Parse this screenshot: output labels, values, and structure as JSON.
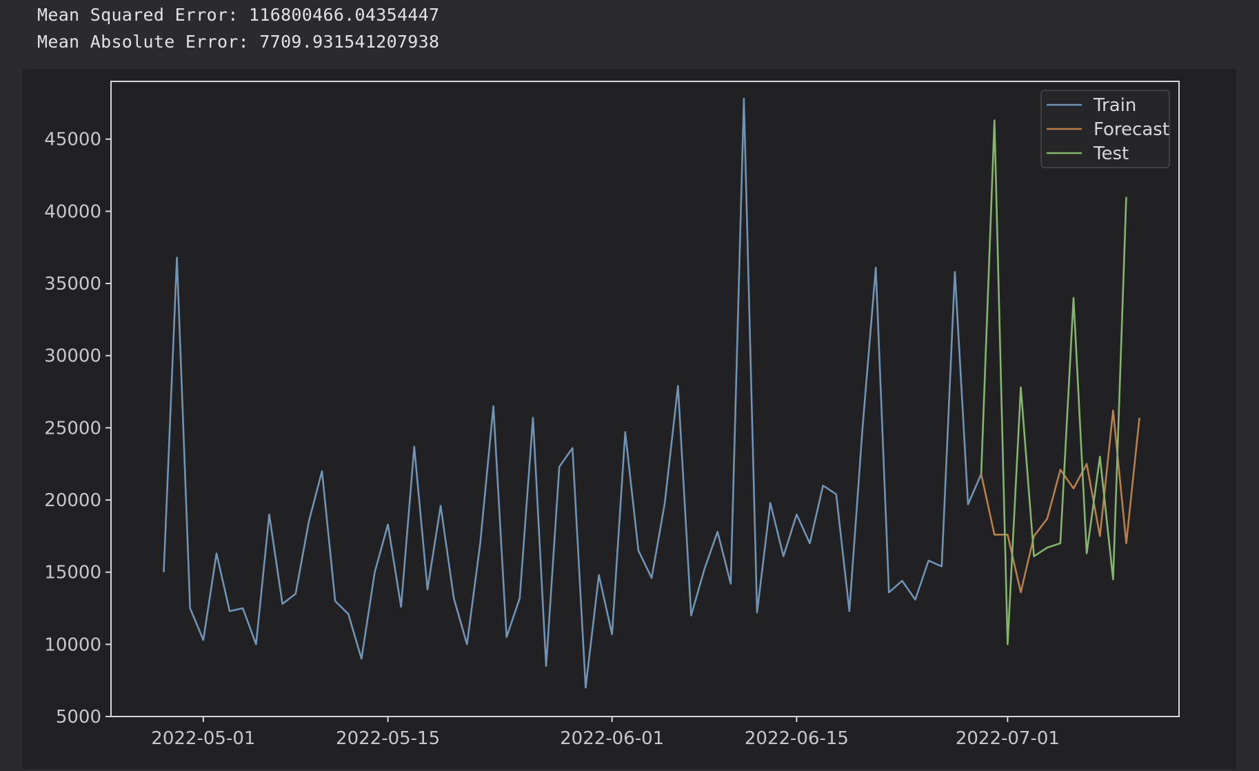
{
  "metrics": {
    "mse_line": "Mean Squared Error: 116800466.04354447",
    "mae_line": "Mean Absolute Error: 7709.931541207938"
  },
  "colors": {
    "background": "#212123",
    "axes_frame": "#d9d9d9",
    "train": "#7193b4",
    "forecast": "#b7804e",
    "test": "#86b56f"
  },
  "chart_data": {
    "type": "line",
    "title": "",
    "xlabel": "",
    "ylabel": "",
    "grid": false,
    "legend_position": "top-right",
    "xlim": [
      "2022-04-24",
      "2022-07-14"
    ],
    "ylim": [
      5000,
      49000
    ],
    "xticks": [
      "2022-05-01",
      "2022-05-15",
      "2022-06-01",
      "2022-06-15",
      "2022-07-01"
    ],
    "yticks": [
      5000,
      10000,
      15000,
      20000,
      25000,
      30000,
      35000,
      40000,
      45000
    ],
    "series": [
      {
        "name": "Train",
        "start_date": "2022-04-28",
        "values": [
          15000,
          36800,
          12500,
          10300,
          16300,
          12300,
          12500,
          10000,
          19000,
          12800,
          13500,
          18500,
          22000,
          13000,
          12100,
          9000,
          15000,
          18300,
          12600,
          23700,
          13800,
          19600,
          13200,
          10000,
          17000,
          26500,
          10500,
          13200,
          25700,
          8500,
          22300,
          23600,
          7000,
          14800,
          10700,
          24700,
          16500,
          14600,
          19800,
          27900,
          12000,
          15200,
          17800,
          14200,
          47800,
          12200,
          19800,
          16100,
          19000,
          17000,
          21000,
          20400,
          12300,
          25000,
          36100,
          13600,
          14400,
          13100,
          15800,
          15400,
          35800,
          19700,
          21800
        ]
      },
      {
        "name": "Forecast",
        "start_date": "2022-06-29",
        "values": [
          21800,
          17600,
          17600,
          13600,
          17500,
          18700,
          22100,
          20800,
          22500,
          17500,
          26200,
          17000,
          25700
        ]
      },
      {
        "name": "Test",
        "start_date": "2022-06-29",
        "values": [
          21800,
          46300,
          10000,
          27800,
          16100,
          16700,
          17000,
          34000,
          16300,
          23000,
          14500,
          41000
        ]
      }
    ]
  }
}
